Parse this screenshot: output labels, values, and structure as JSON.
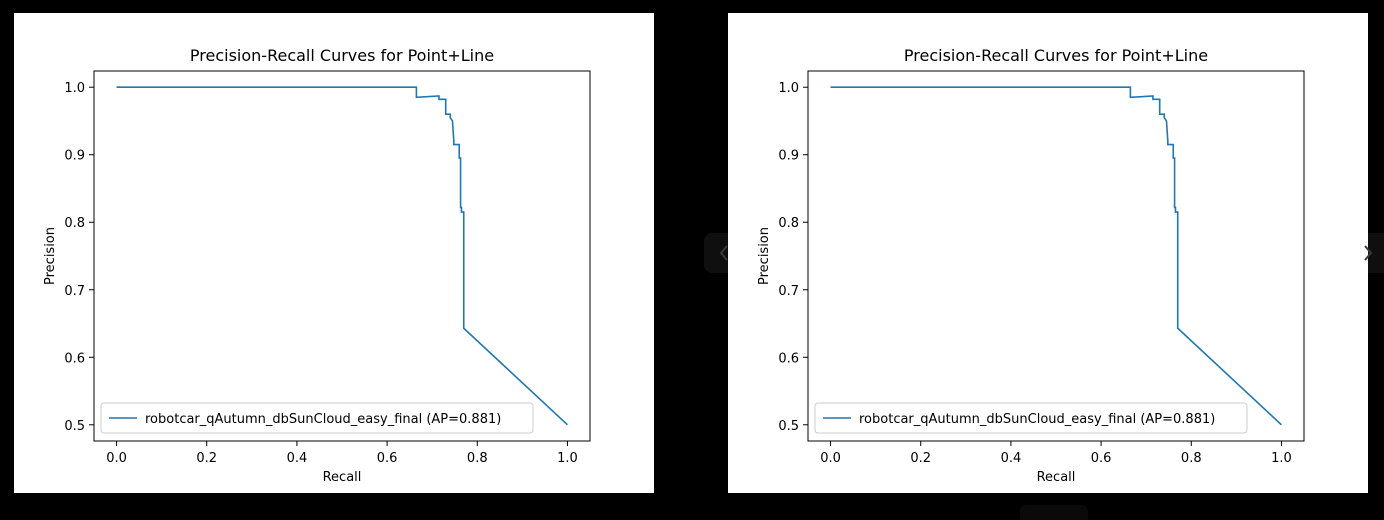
{
  "viewer": {
    "prev_icon": "chevron-left-icon",
    "next_icon": "chevron-right-icon"
  },
  "chart_data": [
    {
      "type": "line",
      "title": "Precision-Recall Curves for Point+Line",
      "xlabel": "Recall",
      "ylabel": "Precision",
      "xlim": [
        -0.05,
        1.05
      ],
      "ylim": [
        0.476,
        1.024
      ],
      "xticks": [
        "0.0",
        "0.2",
        "0.4",
        "0.6",
        "0.8",
        "1.0"
      ],
      "yticks": [
        "0.5",
        "0.6",
        "0.7",
        "0.8",
        "0.9",
        "1.0"
      ],
      "grid": false,
      "legend_position": "lower left",
      "series": [
        {
          "name": "robotcar_qAutumn_dbSunCloud_easy_final (AP=0.881)",
          "color": "#1f77b4",
          "x": [
            0.0,
            0.665,
            0.665,
            0.715,
            0.715,
            0.73,
            0.73,
            0.74,
            0.74,
            0.745,
            0.748,
            0.748,
            0.752,
            0.752,
            0.76,
            0.76,
            0.763,
            0.763,
            0.765,
            0.765,
            0.77,
            0.77,
            1.0
          ],
          "y": [
            1.0,
            1.0,
            0.985,
            0.987,
            0.982,
            0.982,
            0.96,
            0.96,
            0.955,
            0.95,
            0.92,
            0.915,
            0.915,
            0.915,
            0.915,
            0.895,
            0.895,
            0.822,
            0.822,
            0.815,
            0.815,
            0.643,
            0.5
          ]
        }
      ]
    },
    {
      "type": "line",
      "title": "Precision-Recall Curves for Point+Line",
      "xlabel": "Recall",
      "ylabel": "Precision",
      "xlim": [
        -0.05,
        1.05
      ],
      "ylim": [
        0.476,
        1.024
      ],
      "xticks": [
        "0.0",
        "0.2",
        "0.4",
        "0.6",
        "0.8",
        "1.0"
      ],
      "yticks": [
        "0.5",
        "0.6",
        "0.7",
        "0.8",
        "0.9",
        "1.0"
      ],
      "grid": false,
      "legend_position": "lower left",
      "series": [
        {
          "name": "robotcar_qAutumn_dbSunCloud_easy_final (AP=0.881)",
          "color": "#1f77b4",
          "x": [
            0.0,
            0.665,
            0.665,
            0.715,
            0.715,
            0.73,
            0.73,
            0.74,
            0.74,
            0.745,
            0.748,
            0.748,
            0.752,
            0.752,
            0.76,
            0.76,
            0.763,
            0.763,
            0.765,
            0.765,
            0.77,
            0.77,
            1.0
          ],
          "y": [
            1.0,
            1.0,
            0.985,
            0.987,
            0.982,
            0.982,
            0.96,
            0.96,
            0.955,
            0.95,
            0.92,
            0.915,
            0.915,
            0.915,
            0.915,
            0.895,
            0.895,
            0.822,
            0.822,
            0.815,
            0.815,
            0.643,
            0.5
          ]
        }
      ]
    }
  ]
}
